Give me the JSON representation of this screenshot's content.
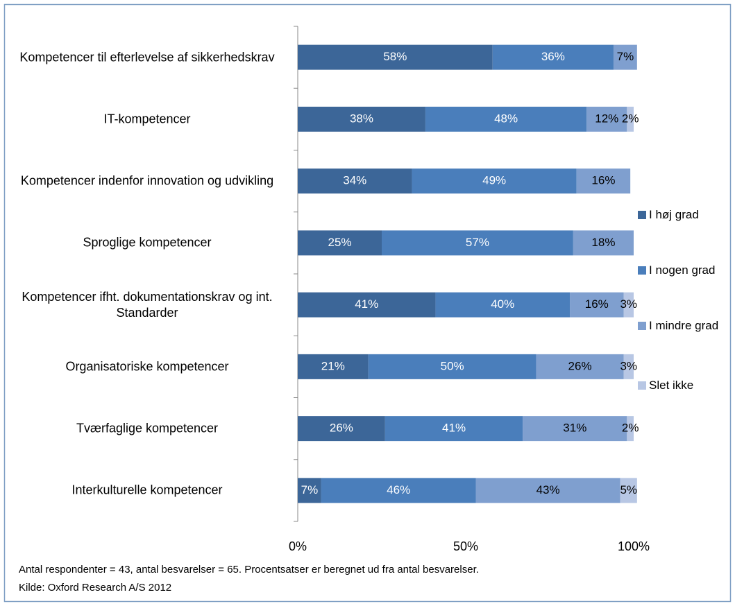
{
  "chart_data": {
    "type": "stacked-bar-horizontal",
    "categories": [
      "Kompetencer til efterlevelse af sikkerhedskrav",
      "IT-kompetencer",
      "Kompetencer indenfor innovation og udvikling",
      "Sproglige kompetencer",
      "Kompetencer ifht. dokumentationskrav og int. Standarder",
      "Organisatoriske kompetencer",
      "Tværfaglige kompetencer",
      "Interkulturelle kompetencer"
    ],
    "series": [
      {
        "name": "I høj grad",
        "color": "#3c6698",
        "label_color": "#ffffff",
        "values": [
          58,
          38,
          34,
          25,
          41,
          21,
          26,
          7
        ],
        "value_labels": [
          "58%",
          "38%",
          "34%",
          "25%",
          "41%",
          "21%",
          "26%",
          "7%"
        ]
      },
      {
        "name": "I nogen grad",
        "color": "#4a7ebb",
        "label_color": "#ffffff",
        "values": [
          36,
          48,
          49,
          57,
          40,
          50,
          41,
          46
        ],
        "value_labels": [
          "36%",
          "48%",
          "49%",
          "57%",
          "40%",
          "50%",
          "41%",
          "46%"
        ]
      },
      {
        "name": "I mindre grad",
        "color": "#7f9fcf",
        "label_color": "#000000",
        "values": [
          7,
          12,
          16,
          18,
          16,
          26,
          31,
          43
        ],
        "value_labels": [
          "7%",
          "12%",
          "16%",
          "18%",
          "16%",
          "26%",
          "31%",
          "43%"
        ]
      },
      {
        "name": "Slet ikke",
        "color": "#b8c7e4",
        "label_color": "#000000",
        "values": [
          null,
          2,
          null,
          null,
          3,
          3,
          2,
          5
        ],
        "value_labels": [
          null,
          "2%",
          null,
          null,
          "3%",
          "3%",
          "2%",
          "5%"
        ]
      }
    ],
    "xlim": [
      0,
      100
    ],
    "xticks": [
      {
        "value": 0,
        "label": "0%"
      },
      {
        "value": 50,
        "label": "50%"
      },
      {
        "value": 100,
        "label": "100%"
      }
    ],
    "footnotes": [
      "Antal respondenter = 43, antal besvarelser = 65. Procentsatser er beregnet ud fra antal besvarelser.",
      "Kilde: Oxford Research A/S 2012"
    ]
  }
}
